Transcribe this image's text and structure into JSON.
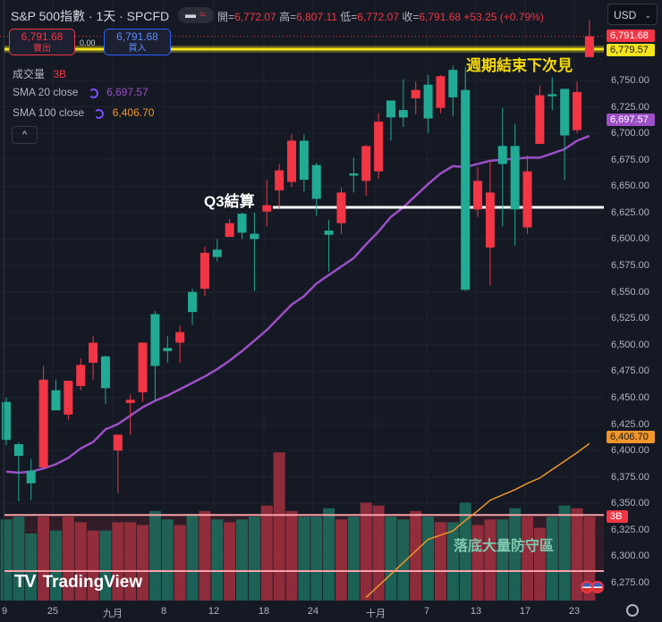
{
  "header": {
    "title": "S&P 500指數 · 1天 · SPCFD",
    "pill_left": "▬",
    "pill_right": "≈",
    "open_label": "開=",
    "open": "6,772.07",
    "high_label": "高=",
    "high": "6,807.11",
    "low_label": "低=",
    "low": "6,772.07",
    "close_label": "收=",
    "close": "6,791.68",
    "change": "+53.25 (+0.79%)"
  },
  "trade": {
    "sell_price": "6,791.68",
    "sell_label": "賣出",
    "spread": "0.00",
    "buy_price": "6,791.68",
    "buy_label": "買入"
  },
  "indicators": {
    "volume_label": "成交量",
    "volume_value": "3B",
    "sma20_label": "SMA 20 close",
    "sma20_value": "6,697.57",
    "sma100_label": "SMA 100 close",
    "sma100_value": "6,406.70",
    "collapse_icon": "^"
  },
  "currency": {
    "value": "USD",
    "chevron": "⌄"
  },
  "annotations": {
    "cycle_end": "週期結束下次見",
    "q3": "Q3結算",
    "zone": "落底大量防守區"
  },
  "price_badges": {
    "last": "6,791.68",
    "yellow_line": "6,779.57",
    "sma20": "6,697.57",
    "sma100": "6,406.70",
    "volume": "3B"
  },
  "logo": {
    "mark": "TV",
    "text": "TradingView"
  },
  "colors": {
    "up": "#f23645",
    "down": "#22ab94",
    "sma20": "#9c4fc6",
    "sma100": "#f0962a",
    "yellow": "#f5e31c",
    "zone": "#f23645",
    "white_line": "#ffffff"
  },
  "chart_data": {
    "type": "candlestick",
    "title": "S&P 500指數 · 1天 · SPCFD",
    "y_axis_ticks": [
      "6,750.00",
      "6,725.00",
      "6,700.00",
      "6,675.00",
      "6,650.00",
      "6,625.00",
      "6,600.00",
      "6,575.00",
      "6,550.00",
      "6,525.00",
      "6,500.00",
      "6,475.00",
      "6,450.00",
      "6,425.00",
      "6,400.00",
      "6,375.00",
      "6,350.00",
      "6,325.00",
      "6,300.00",
      "6,275.00"
    ],
    "y_axis_values": [
      6750,
      6725,
      6700,
      6675,
      6650,
      6625,
      6600,
      6575,
      6550,
      6525,
      6500,
      6475,
      6450,
      6425,
      6400,
      6375,
      6350,
      6325,
      6300,
      6275
    ],
    "x_axis_ticks": [
      "9",
      "25",
      "九月",
      "8",
      "12",
      "18",
      "24",
      "十月",
      "7",
      "13",
      "17",
      "23"
    ],
    "ohlc": [
      [
        6446,
        6450,
        6405,
        6410
      ],
      [
        6406,
        6408,
        6352,
        6395
      ],
      [
        6381,
        6392,
        6353,
        6369
      ],
      [
        6384,
        6480,
        6384,
        6467
      ],
      [
        6457,
        6467,
        6438,
        6438
      ],
      [
        6434,
        6466,
        6429,
        6466
      ],
      [
        6461,
        6487,
        6457,
        6481
      ],
      [
        6483,
        6508,
        6467,
        6502
      ],
      [
        6489,
        6490,
        6444,
        6459
      ],
      [
        6400,
        6415,
        6360,
        6415
      ],
      [
        6445,
        6453,
        6415,
        6448
      ],
      [
        6455,
        6502,
        6446,
        6502
      ],
      [
        6529,
        6532,
        6446,
        6480
      ],
      [
        6497,
        6508,
        6483,
        6494
      ],
      [
        6502,
        6518,
        6483,
        6512
      ],
      [
        6550,
        6553,
        6519,
        6531
      ],
      [
        6553,
        6593,
        6546,
        6587
      ],
      [
        6590,
        6600,
        6579,
        6583
      ],
      [
        6602,
        6619,
        6602,
        6615
      ],
      [
        6624,
        6625,
        6600,
        6606
      ],
      [
        6605,
        6625,
        6551,
        6600
      ],
      [
        6626,
        6656,
        6612,
        6632
      ],
      [
        6646,
        6671,
        6629,
        6665
      ],
      [
        6654,
        6699,
        6649,
        6693
      ],
      [
        6693,
        6699,
        6645,
        6656
      ],
      [
        6670,
        6672,
        6622,
        6638
      ],
      [
        6608,
        6618,
        6569,
        6604
      ],
      [
        6615,
        6649,
        6605,
        6644
      ],
      [
        6662,
        6677,
        6644,
        6660
      ],
      [
        6655,
        6689,
        6641,
        6688
      ],
      [
        6664,
        6719,
        6657,
        6711
      ],
      [
        6731,
        6731,
        6693,
        6715
      ],
      [
        6722,
        6751,
        6706,
        6715
      ],
      [
        6733,
        6749,
        6718,
        6741
      ],
      [
        6746,
        6755,
        6700,
        6714
      ],
      [
        6724,
        6755,
        6719,
        6754
      ],
      [
        6760,
        6764,
        6716,
        6734
      ],
      [
        6741,
        6763,
        6551,
        6552
      ],
      [
        6628,
        6668,
        6621,
        6655
      ],
      [
        6592,
        6673,
        6556,
        6644
      ],
      [
        6688,
        6724,
        6612,
        6671
      ],
      [
        6688,
        6709,
        6594,
        6628
      ],
      [
        6611,
        6679,
        6605,
        6664
      ],
      [
        6690,
        6745,
        6690,
        6736
      ],
      [
        6737,
        6753,
        6722,
        6735
      ],
      [
        6742,
        6742,
        6656,
        6698
      ],
      [
        6703,
        6749,
        6700,
        6739
      ],
      [
        6772.07,
        6807.11,
        6772.07,
        6791.68
      ]
    ],
    "volume_billions": [
      2.9,
      3.0,
      2.4,
      3.0,
      2.5,
      3.0,
      2.8,
      2.5,
      2.5,
      2.8,
      2.8,
      2.7,
      3.2,
      2.9,
      2.7,
      3.1,
      3.2,
      2.9,
      2.8,
      2.9,
      3.0,
      3.4,
      5.3,
      3.2,
      3.0,
      3.0,
      3.3,
      2.9,
      3.0,
      3.5,
      3.4,
      3.0,
      2.9,
      3.2,
      3.0,
      2.8,
      2.8,
      3.5,
      2.7,
      2.9,
      2.9,
      3.3,
      3.0,
      2.6,
      3.0,
      3.4,
      3.3,
      3.0
    ],
    "sma20": [
      6380,
      6379,
      6380,
      6383,
      6387,
      6393,
      6402,
      6408,
      6420,
      6425,
      6433,
      6441,
      6447,
      6452,
      6458,
      6464,
      6470,
      6477,
      6485,
      6494,
      6504,
      6514,
      6526,
      6538,
      6546,
      6558,
      6566,
      6574,
      6582,
      6595,
      6607,
      6621,
      6630,
      6641,
      6652,
      6662,
      6669,
      6668,
      6671,
      6674,
      6675,
      6676,
      6677,
      6677,
      6681,
      6685,
      6693,
      6697.57
    ],
    "sma100": [
      null,
      null,
      null,
      null,
      null,
      null,
      null,
      null,
      null,
      null,
      null,
      null,
      null,
      null,
      null,
      null,
      null,
      null,
      null,
      null,
      null,
      null,
      null,
      null,
      null,
      null,
      null,
      null,
      null,
      6261,
      6272,
      6283,
      6294,
      6305,
      6316,
      6320,
      6324,
      6334,
      6343,
      6353,
      6358,
      6363,
      6369,
      6374,
      6382,
      6390,
      6398,
      6406.7
    ],
    "levels": {
      "yellow_line": 6779.57,
      "last_price": 6791.68,
      "q3_line": 6630,
      "zone_top": 6339,
      "zone_bottom": 6286
    }
  }
}
